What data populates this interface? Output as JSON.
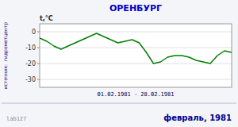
{
  "chart_data": {
    "type": "line",
    "title": "ОРЕНБУРГ",
    "ylabel": "t,°C",
    "xlabel": "01.02.1981 - 28.02.1981",
    "annotations": [
      "источник:  гидрометцентр",
      "lab127",
      "февраль, 1981"
    ],
    "x": [
      1,
      2,
      3,
      4,
      5,
      6,
      7,
      8,
      9,
      10,
      11,
      12,
      13,
      14,
      15,
      16,
      17,
      18,
      19,
      20,
      21,
      22,
      23,
      24,
      25,
      26,
      27,
      28
    ],
    "values": [
      -4,
      -6,
      -9,
      -11,
      -9,
      -7,
      -5,
      -3,
      -1,
      -3,
      -5,
      -7,
      -6,
      -5,
      -7,
      -13,
      -20,
      -19,
      -16,
      -15,
      -15,
      -16,
      -18,
      -19,
      -20,
      -15,
      -12,
      -13
    ],
    "color": "#008000",
    "xlim": [
      1,
      28
    ],
    "xticks": [],
    "ylim": [
      -35,
      5
    ],
    "yticks": [
      0,
      -10,
      -20,
      -30
    ],
    "grid": true,
    "tick_labels": "y"
  }
}
